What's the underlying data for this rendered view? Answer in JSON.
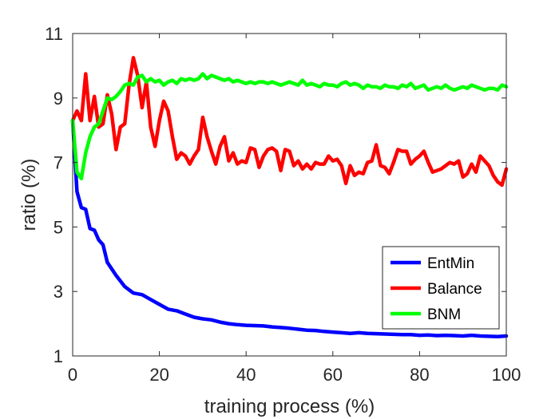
{
  "chart_data": {
    "type": "line",
    "title": "",
    "xlabel": "training process (%)",
    "ylabel": "ratio (%)",
    "xlim": [
      0,
      100
    ],
    "ylim": [
      1,
      11
    ],
    "xticks": [
      0,
      20,
      40,
      60,
      80,
      100
    ],
    "yticks": [
      1,
      3,
      5,
      7,
      9,
      11
    ],
    "xtick_labels": [
      "0",
      "20",
      "40",
      "60",
      "80",
      "100"
    ],
    "ytick_labels": [
      "1",
      "3",
      "5",
      "7",
      "9",
      "11"
    ],
    "grid": false,
    "legend_position": "bottom-right",
    "series": [
      {
        "name": "EntMin",
        "color": "#0000ff",
        "x": [
          0,
          1,
          2,
          3,
          4,
          5,
          6,
          7,
          8,
          10,
          12,
          14,
          16,
          18,
          20,
          22,
          24,
          26,
          28,
          30,
          32,
          34,
          36,
          38,
          40,
          42,
          44,
          46,
          48,
          50,
          52,
          54,
          56,
          58,
          60,
          62,
          64,
          66,
          68,
          70,
          72,
          74,
          76,
          78,
          80,
          82,
          84,
          86,
          88,
          90,
          92,
          94,
          96,
          98,
          100
        ],
        "values": [
          8.3,
          6.1,
          5.6,
          5.55,
          4.95,
          4.9,
          4.6,
          4.45,
          3.9,
          3.5,
          3.15,
          2.95,
          2.9,
          2.75,
          2.6,
          2.45,
          2.4,
          2.3,
          2.2,
          2.15,
          2.12,
          2.05,
          2.0,
          1.97,
          1.95,
          1.94,
          1.93,
          1.9,
          1.88,
          1.86,
          1.83,
          1.8,
          1.79,
          1.76,
          1.74,
          1.72,
          1.7,
          1.72,
          1.7,
          1.69,
          1.68,
          1.67,
          1.66,
          1.66,
          1.64,
          1.65,
          1.63,
          1.64,
          1.63,
          1.62,
          1.64,
          1.62,
          1.61,
          1.6,
          1.62
        ]
      },
      {
        "name": "Balance",
        "color": "#ff0000",
        "x": [
          0,
          1,
          2,
          3,
          4,
          5,
          6,
          7,
          8,
          9,
          10,
          11,
          12,
          13,
          14,
          15,
          16,
          17,
          18,
          19,
          20,
          21,
          22,
          23,
          24,
          25,
          26,
          27,
          28,
          29,
          30,
          31,
          32,
          33,
          34,
          35,
          36,
          37,
          38,
          39,
          40,
          41,
          42,
          43,
          44,
          45,
          46,
          47,
          48,
          49,
          50,
          51,
          52,
          53,
          54,
          55,
          56,
          57,
          58,
          59,
          60,
          61,
          62,
          63,
          64,
          65,
          66,
          67,
          68,
          69,
          70,
          71,
          72,
          73,
          74,
          75,
          76,
          77,
          78,
          79,
          80,
          81,
          82,
          83,
          84,
          85,
          86,
          87,
          88,
          89,
          90,
          91,
          92,
          93,
          94,
          95,
          96,
          97,
          98,
          99,
          100
        ],
        "values": [
          8.3,
          8.6,
          8.3,
          9.75,
          8.3,
          9.05,
          8.1,
          8.2,
          9.1,
          8.5,
          7.4,
          8.1,
          8.2,
          9.4,
          10.25,
          9.7,
          8.7,
          9.5,
          8.1,
          7.5,
          8.3,
          8.9,
          8.6,
          7.8,
          7.1,
          7.3,
          7.2,
          6.95,
          7.2,
          7.4,
          8.4,
          7.8,
          7.35,
          6.95,
          7.5,
          7.8,
          7.05,
          7.3,
          6.95,
          7.05,
          7.0,
          7.45,
          7.4,
          6.85,
          7.2,
          7.4,
          7.45,
          7.35,
          6.75,
          7.4,
          7.35,
          6.9,
          7.05,
          6.8,
          6.95,
          6.8,
          7.0,
          6.95,
          6.95,
          7.2,
          7.05,
          7.1,
          6.9,
          6.35,
          6.9,
          6.6,
          6.7,
          6.65,
          7.0,
          7.05,
          7.55,
          6.9,
          6.85,
          6.65,
          7.0,
          7.4,
          7.35,
          7.35,
          6.95,
          7.1,
          7.2,
          7.35,
          7.0,
          6.7,
          6.75,
          6.8,
          6.9,
          7.0,
          6.95,
          7.05,
          6.55,
          6.65,
          6.95,
          6.7,
          7.2,
          7.05,
          6.9,
          6.6,
          6.4,
          6.3,
          6.8
        ]
      },
      {
        "name": "BNM",
        "color": "#00ff00",
        "x": [
          0,
          1,
          2,
          3,
          4,
          5,
          6,
          7,
          8,
          9,
          10,
          11,
          12,
          13,
          14,
          15,
          16,
          17,
          18,
          19,
          20,
          21,
          22,
          23,
          24,
          25,
          26,
          27,
          28,
          29,
          30,
          31,
          32,
          33,
          34,
          35,
          36,
          37,
          38,
          39,
          40,
          41,
          42,
          43,
          44,
          45,
          46,
          47,
          48,
          49,
          50,
          51,
          52,
          53,
          54,
          55,
          56,
          57,
          58,
          59,
          60,
          61,
          62,
          63,
          64,
          65,
          66,
          67,
          68,
          69,
          70,
          71,
          72,
          73,
          74,
          75,
          76,
          77,
          78,
          79,
          80,
          81,
          82,
          83,
          84,
          85,
          86,
          87,
          88,
          89,
          90,
          91,
          92,
          93,
          94,
          95,
          96,
          97,
          98,
          99,
          100
        ],
        "values": [
          8.3,
          6.7,
          6.5,
          7.3,
          7.8,
          8.1,
          8.2,
          8.6,
          9.0,
          8.95,
          9.05,
          9.2,
          9.4,
          9.45,
          9.4,
          9.65,
          9.7,
          9.5,
          9.6,
          9.5,
          9.55,
          9.4,
          9.5,
          9.55,
          9.45,
          9.6,
          9.55,
          9.6,
          9.55,
          9.6,
          9.75,
          9.6,
          9.7,
          9.65,
          9.6,
          9.55,
          9.6,
          9.5,
          9.55,
          9.5,
          9.45,
          9.5,
          9.45,
          9.5,
          9.5,
          9.45,
          9.5,
          9.45,
          9.4,
          9.45,
          9.5,
          9.45,
          9.4,
          9.55,
          9.4,
          9.45,
          9.4,
          9.35,
          9.45,
          9.4,
          9.4,
          9.35,
          9.45,
          9.5,
          9.4,
          9.45,
          9.4,
          9.3,
          9.4,
          9.35,
          9.35,
          9.3,
          9.4,
          9.35,
          9.35,
          9.3,
          9.4,
          9.35,
          9.45,
          9.3,
          9.35,
          9.4,
          9.25,
          9.3,
          9.35,
          9.3,
          9.4,
          9.3,
          9.25,
          9.3,
          9.35,
          9.3,
          9.4,
          9.35,
          9.3,
          9.25,
          9.3,
          9.3,
          9.25,
          9.4,
          9.35
        ]
      }
    ]
  }
}
